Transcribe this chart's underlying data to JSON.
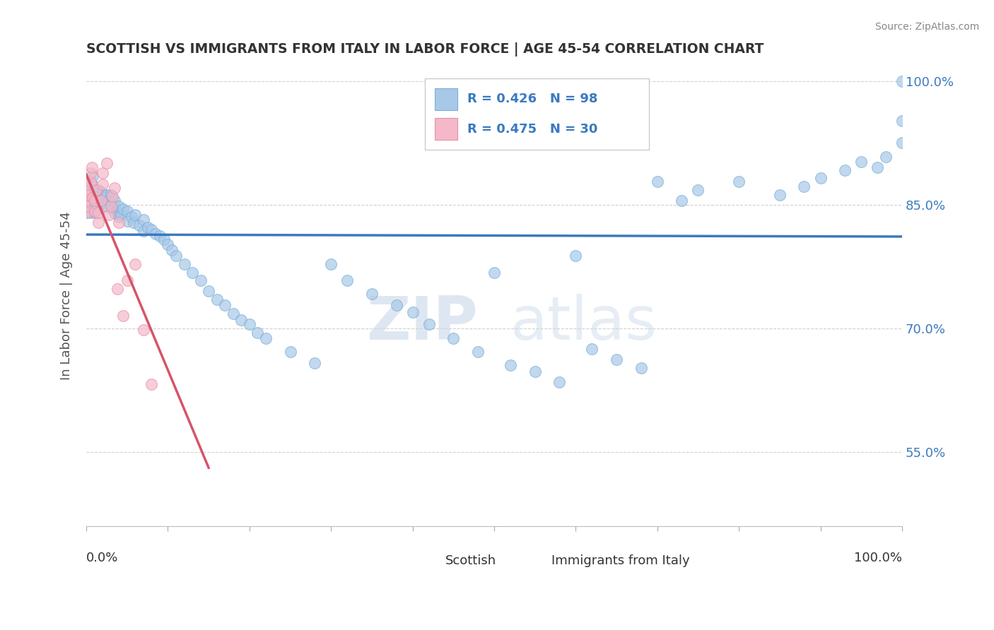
{
  "title": "SCOTTISH VS IMMIGRANTS FROM ITALY IN LABOR FORCE | AGE 45-54 CORRELATION CHART",
  "source": "Source: ZipAtlas.com",
  "ylabel": "In Labor Force | Age 45-54",
  "xmin": 0.0,
  "xmax": 1.0,
  "ymin": 0.46,
  "ymax": 1.02,
  "right_yticks": [
    0.55,
    0.7,
    0.85,
    1.0
  ],
  "right_ytick_labels": [
    "55.0%",
    "70.0%",
    "85.0%",
    "100.0%"
  ],
  "blue_color": "#a8c8e8",
  "blue_edge_color": "#7aaed6",
  "blue_line_color": "#3a7abf",
  "pink_color": "#f4b8c8",
  "pink_edge_color": "#e890a8",
  "pink_line_color": "#d6546a",
  "legend_blue_label": "Scottish",
  "legend_pink_label": "Immigrants from Italy",
  "blue_R": 0.426,
  "blue_N": 98,
  "pink_R": 0.475,
  "pink_N": 30,
  "watermark_ZIP": "ZIP",
  "watermark_atlas": "atlas",
  "sc_x": [
    0.0,
    0.0,
    0.0,
    0.0,
    0.0,
    0.0,
    0.0,
    0.0,
    0.0,
    0.005,
    0.005,
    0.007,
    0.007,
    0.008,
    0.01,
    0.01,
    0.01,
    0.012,
    0.012,
    0.015,
    0.015,
    0.018,
    0.018,
    0.02,
    0.02,
    0.022,
    0.025,
    0.025,
    0.028,
    0.03,
    0.03,
    0.032,
    0.035,
    0.035,
    0.038,
    0.04,
    0.04,
    0.042,
    0.045,
    0.05,
    0.05,
    0.055,
    0.058,
    0.06,
    0.065,
    0.07,
    0.07,
    0.075,
    0.08,
    0.085,
    0.09,
    0.095,
    0.1,
    0.105,
    0.11,
    0.12,
    0.13,
    0.14,
    0.15,
    0.16,
    0.17,
    0.18,
    0.19,
    0.2,
    0.21,
    0.22,
    0.25,
    0.28,
    0.3,
    0.32,
    0.35,
    0.38,
    0.4,
    0.42,
    0.45,
    0.48,
    0.5,
    0.52,
    0.55,
    0.58,
    0.6,
    0.62,
    0.65,
    0.68,
    0.7,
    0.73,
    0.75,
    0.8,
    0.85,
    0.88,
    0.9,
    0.93,
    0.95,
    0.97,
    0.98,
    1.0,
    1.0,
    1.0
  ],
  "sc_y": [
    0.84,
    0.845,
    0.85,
    0.855,
    0.86,
    0.865,
    0.87,
    0.875,
    0.88,
    0.84,
    0.855,
    0.862,
    0.875,
    0.885,
    0.84,
    0.852,
    0.862,
    0.858,
    0.868,
    0.855,
    0.868,
    0.855,
    0.865,
    0.852,
    0.862,
    0.858,
    0.848,
    0.862,
    0.855,
    0.85,
    0.862,
    0.845,
    0.84,
    0.855,
    0.842,
    0.835,
    0.848,
    0.838,
    0.845,
    0.83,
    0.842,
    0.835,
    0.828,
    0.838,
    0.825,
    0.818,
    0.832,
    0.822,
    0.82,
    0.815,
    0.812,
    0.808,
    0.802,
    0.795,
    0.788,
    0.778,
    0.768,
    0.758,
    0.745,
    0.735,
    0.728,
    0.718,
    0.71,
    0.705,
    0.695,
    0.688,
    0.672,
    0.658,
    0.778,
    0.758,
    0.742,
    0.728,
    0.72,
    0.705,
    0.688,
    0.672,
    0.768,
    0.655,
    0.648,
    0.635,
    0.788,
    0.675,
    0.662,
    0.652,
    0.878,
    0.855,
    0.868,
    0.878,
    0.862,
    0.872,
    0.882,
    0.892,
    0.902,
    0.895,
    0.908,
    0.925,
    0.952,
    1.0
  ],
  "it_x": [
    0.0,
    0.0,
    0.0,
    0.0,
    0.0,
    0.0,
    0.005,
    0.005,
    0.007,
    0.008,
    0.01,
    0.01,
    0.012,
    0.015,
    0.015,
    0.018,
    0.02,
    0.02,
    0.025,
    0.028,
    0.03,
    0.032,
    0.035,
    0.038,
    0.04,
    0.045,
    0.05,
    0.06,
    0.07,
    0.08
  ],
  "it_y": [
    0.84,
    0.848,
    0.855,
    0.862,
    0.868,
    0.875,
    0.878,
    0.888,
    0.895,
    0.858,
    0.842,
    0.855,
    0.868,
    0.828,
    0.84,
    0.855,
    0.875,
    0.888,
    0.9,
    0.838,
    0.848,
    0.86,
    0.87,
    0.748,
    0.828,
    0.715,
    0.758,
    0.778,
    0.698,
    0.632
  ]
}
